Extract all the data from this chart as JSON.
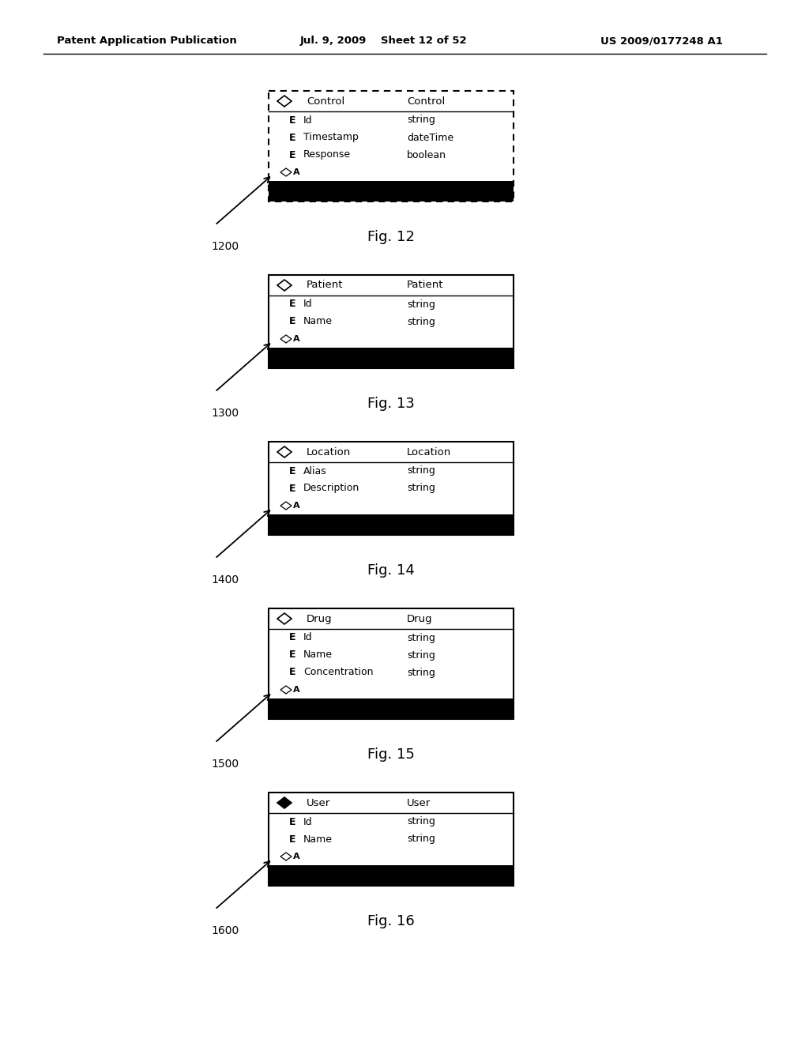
{
  "header_left": "Patent Application Publication",
  "header_mid": "Jul. 9, 2009    Sheet 12 of 52",
  "header_right": "US 2009/0177248 A1",
  "background_color": "#ffffff",
  "figures": [
    {
      "fig_num": "Fig. 12",
      "fig_label": "1200",
      "title_icon": "diamond_open",
      "title_col1": "Control",
      "title_col2": "Control",
      "rows": [
        {
          "prefix": "E",
          "col1": "Id",
          "col2": "string"
        },
        {
          "prefix": "E",
          "col1": "Timestamp",
          "col2": "dateTime"
        },
        {
          "prefix": "E",
          "col1": "Response",
          "col2": "boolean"
        }
      ],
      "has_dashed_border": true
    },
    {
      "fig_num": "Fig. 13",
      "fig_label": "1300",
      "title_icon": "diamond_open",
      "title_col1": "Patient",
      "title_col2": "Patient",
      "rows": [
        {
          "prefix": "E",
          "col1": "Id",
          "col2": "string"
        },
        {
          "prefix": "E",
          "col1": "Name",
          "col2": "string"
        }
      ],
      "has_dashed_border": false
    },
    {
      "fig_num": "Fig. 14",
      "fig_label": "1400",
      "title_icon": "diamond_open",
      "title_col1": "Location",
      "title_col2": "Location",
      "rows": [
        {
          "prefix": "E",
          "col1": "Alias",
          "col2": "string"
        },
        {
          "prefix": "E",
          "col1": "Description",
          "col2": "string"
        }
      ],
      "has_dashed_border": false
    },
    {
      "fig_num": "Fig. 15",
      "fig_label": "1500",
      "title_icon": "diamond_open",
      "title_col1": "Drug",
      "title_col2": "Drug",
      "rows": [
        {
          "prefix": "E",
          "col1": "Id",
          "col2": "string"
        },
        {
          "prefix": "E",
          "col1": "Name",
          "col2": "string"
        },
        {
          "prefix": "E",
          "col1": "Concentration",
          "col2": "string"
        }
      ],
      "has_dashed_border": false
    },
    {
      "fig_num": "Fig. 16",
      "fig_label": "1600",
      "title_icon": "diamond_filled",
      "title_col1": "User",
      "title_col2": "User",
      "rows": [
        {
          "prefix": "E",
          "col1": "Id",
          "col2": "string"
        },
        {
          "prefix": "E",
          "col1": "Name",
          "col2": "string"
        }
      ],
      "has_dashed_border": false
    }
  ]
}
